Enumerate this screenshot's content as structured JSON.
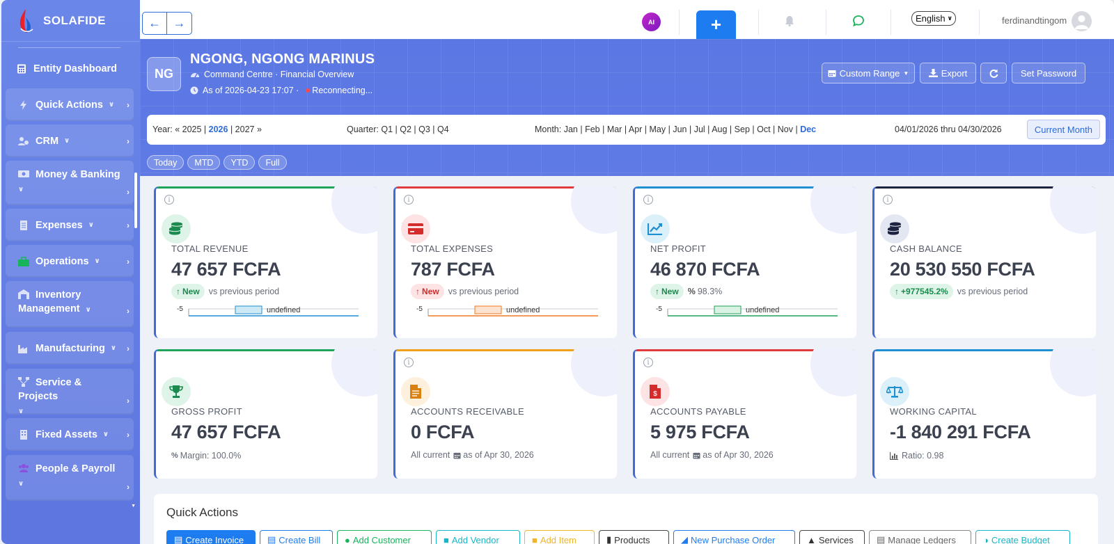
{
  "sidebar": {
    "brand": "SOLAFIDE",
    "dashboard": "Entity Dashboard",
    "items": [
      {
        "label": "Quick Actions"
      },
      {
        "label": "CRM"
      },
      {
        "label": "Money & Banking"
      },
      {
        "label": "Expenses"
      },
      {
        "label": "Operations"
      },
      {
        "label_1": "Inventory",
        "label_2": "Management"
      },
      {
        "label": "Manufacturing"
      },
      {
        "label": "Service & Projects"
      },
      {
        "label": "Fixed Assets"
      },
      {
        "label": "People & Payroll"
      }
    ]
  },
  "topbar": {
    "ai_label": "AI",
    "language": "English",
    "username": "ferdinandtingom"
  },
  "header": {
    "initials": "NG",
    "entity_name": "NGONG, NGONG MARINUS",
    "subtitle": "Command Centre · Financial Overview",
    "as_of": "As of 2026-04-23 17:07 ·",
    "status": "Reconnecting...",
    "buttons": {
      "custom_range": "Custom Range",
      "export": "Export",
      "set_password": "Set Password"
    }
  },
  "period": {
    "year_label": "Year:",
    "year_prev": "« 2025",
    "year_current": "2026",
    "year_next": "2027 »",
    "quarter_label": "Quarter:",
    "quarters": [
      "Q1",
      "Q2",
      "Q3",
      "Q4"
    ],
    "month_label": "Month:",
    "months": [
      "Jan",
      "Feb",
      "Mar",
      "Apr",
      "May",
      "Jun",
      "Jul",
      "Aug",
      "Sep",
      "Oct",
      "Nov"
    ],
    "month_selected": "Dec",
    "range": "04/01/2026 thru 04/30/2026",
    "current_month": "Current Month",
    "pills": [
      "Today",
      "MTD",
      "YTD",
      "Full"
    ]
  },
  "cards": [
    {
      "label": "TOTAL REVENUE",
      "value": "47 657 FCFA",
      "badge": "New",
      "sub": "vs previous period",
      "spark_label": "undefined",
      "spark_tick": "-5",
      "color": "#1fa25a"
    },
    {
      "label": "TOTAL EXPENSES",
      "value": "787 FCFA",
      "badge": "New",
      "sub": "vs previous period",
      "spark_label": "undefined",
      "spark_tick": "-5",
      "color": "#e0393e"
    },
    {
      "label": "NET PROFIT",
      "value": "46 870 FCFA",
      "badge": "New",
      "sub": "98.3%",
      "spark_label": "undefined",
      "spark_tick": "-5",
      "color": "#1e8fd1"
    },
    {
      "label": "CASH BALANCE",
      "value": "20 530 550 FCFA",
      "badge": "+977545.2%",
      "sub": "vs previous period",
      "color": "#1b2340"
    },
    {
      "label": "GROSS PROFIT",
      "value": "47 657 FCFA",
      "sub": "Margin: 100.0%",
      "color": "#1fa25a"
    },
    {
      "label": "ACCOUNTS RECEIVABLE",
      "value": "0 FCFA",
      "sub_a": "All current",
      "sub_b": "as of Apr 30, 2026",
      "color": "#f0a01a"
    },
    {
      "label": "ACCOUNTS PAYABLE",
      "value": "5 975 FCFA",
      "sub_a": "All current",
      "sub_b": "as of Apr 30, 2026",
      "color": "#e0393e"
    },
    {
      "label": "WORKING CAPITAL",
      "value": "-1 840 291 FCFA",
      "sub": "Ratio: 0.98",
      "color": "#1e8fd1"
    }
  ],
  "quick_actions": {
    "title": "Quick Actions",
    "buttons": [
      "Create Invoice",
      "Create Bill",
      "Add Customer",
      "Add Vendor",
      "Add Item",
      "Products",
      "New Purchase Order",
      "Services",
      "Manage Ledgers",
      "Create Budget"
    ]
  }
}
